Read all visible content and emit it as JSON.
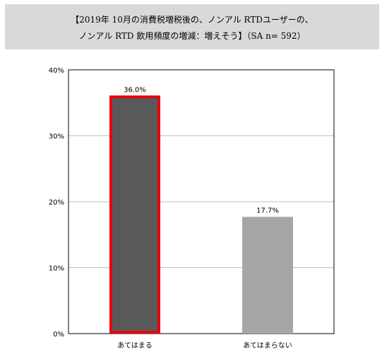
{
  "title": {
    "line1": "【2019年 10月の消費税増税後の、ノンアル RTDユーザーの、",
    "line2": "ノンアル RTD 飲用頻度の増減：増えそう】（SA n= 592）"
  },
  "chart_data": {
    "type": "bar",
    "categories": [
      "あてはまる",
      "あてはまらない"
    ],
    "values": [
      36.0,
      17.7
    ],
    "data_labels": [
      "36.0%",
      "17.7%"
    ],
    "ylim": [
      0,
      40
    ],
    "yticks": [
      "0%",
      "10%",
      "20%",
      "30%",
      "40%"
    ],
    "grid": true,
    "colors": {
      "bar1": "#595959",
      "bar2": "#a6a6a6",
      "highlight_border": "#e8000b"
    },
    "highlighted_category": "あてはまる"
  }
}
